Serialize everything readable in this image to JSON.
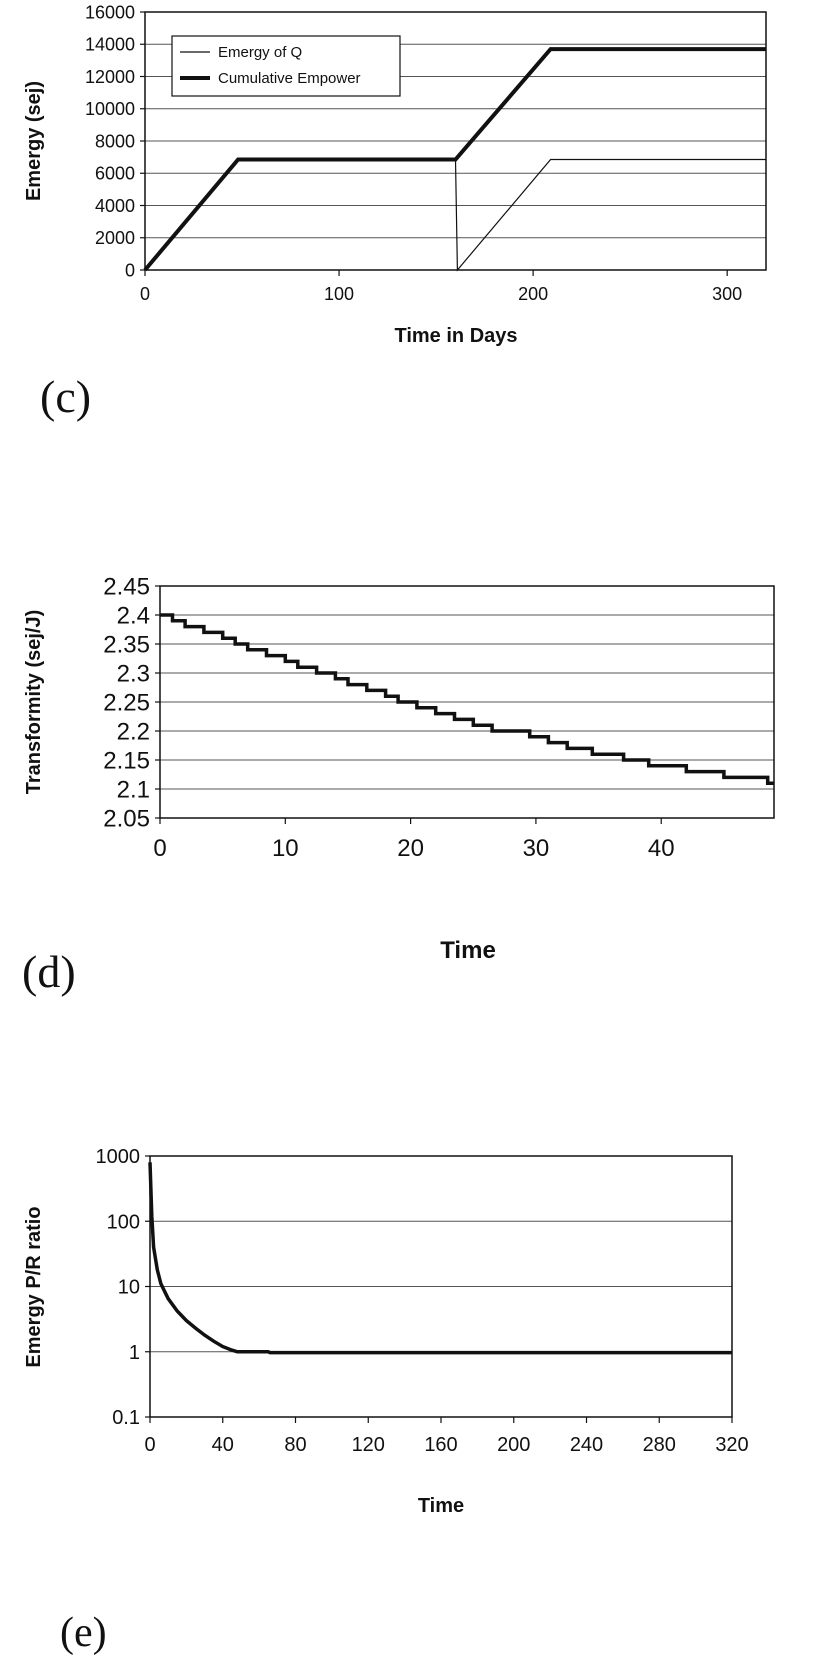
{
  "chart_data": [
    {
      "panel_label": "(c)",
      "type": "line",
      "title": "",
      "xlabel": "Time in Days",
      "ylabel": "Emergy (sej)",
      "xlim": [
        0,
        320
      ],
      "ylim": [
        0,
        16000
      ],
      "x_ticks": [
        0,
        100,
        200,
        300
      ],
      "y_ticks": [
        0,
        2000,
        4000,
        6000,
        8000,
        10000,
        12000,
        14000,
        16000
      ],
      "grid": "horizontal",
      "legend_position": "top-left",
      "series": [
        {
          "name": "Emergy of Q",
          "style": "thin",
          "points": [
            [
              0,
              0
            ],
            [
              48,
              6850
            ],
            [
              160,
              6850
            ],
            [
              161,
              0
            ],
            [
              209,
              6850
            ],
            [
              320,
              6850
            ]
          ]
        },
        {
          "name": "Cumulative Empower",
          "style": "thick",
          "points": [
            [
              0,
              0
            ],
            [
              48,
              6850
            ],
            [
              160,
              6850
            ],
            [
              209,
              13700
            ],
            [
              320,
              13700
            ]
          ]
        }
      ]
    },
    {
      "panel_label": "(d)",
      "type": "line",
      "title": "",
      "xlabel": "Time",
      "ylabel": "Transformity (sej/J)",
      "xlim": [
        0,
        49
      ],
      "ylim": [
        2.05,
        2.45
      ],
      "x_ticks": [
        0,
        10,
        20,
        30,
        40
      ],
      "y_ticks": [
        2.05,
        2.1,
        2.15,
        2.2,
        2.25,
        2.3,
        2.35,
        2.4,
        2.45
      ],
      "grid": "horizontal",
      "series": [
        {
          "style": "thick-step",
          "points": [
            [
              0,
              2.4
            ],
            [
              1,
              2.39
            ],
            [
              2,
              2.38
            ],
            [
              3.5,
              2.37
            ],
            [
              5,
              2.36
            ],
            [
              6,
              2.35
            ],
            [
              7,
              2.34
            ],
            [
              8.5,
              2.33
            ],
            [
              10,
              2.32
            ],
            [
              11,
              2.31
            ],
            [
              12.5,
              2.3
            ],
            [
              14,
              2.29
            ],
            [
              15,
              2.28
            ],
            [
              16.5,
              2.27
            ],
            [
              18,
              2.26
            ],
            [
              19,
              2.25
            ],
            [
              20.5,
              2.24
            ],
            [
              22,
              2.23
            ],
            [
              23.5,
              2.22
            ],
            [
              25,
              2.21
            ],
            [
              26.5,
              2.2
            ],
            [
              28,
              2.2
            ],
            [
              29.5,
              2.19
            ],
            [
              31,
              2.18
            ],
            [
              32.5,
              2.17
            ],
            [
              34.5,
              2.16
            ],
            [
              37,
              2.15
            ],
            [
              39,
              2.14
            ],
            [
              42,
              2.13
            ],
            [
              45,
              2.12
            ],
            [
              48.5,
              2.11
            ],
            [
              49,
              2.11
            ]
          ]
        }
      ]
    },
    {
      "panel_label": "(e)",
      "type": "line",
      "title": "",
      "xlabel": "Time",
      "ylabel": "Emergy P/R ratio",
      "xlim": [
        0,
        320
      ],
      "ylim": [
        0.1,
        1000
      ],
      "y_scale": "log",
      "x_ticks": [
        0,
        40,
        80,
        120,
        160,
        200,
        240,
        280,
        320
      ],
      "y_ticks": [
        0.1,
        1,
        10,
        100,
        1000
      ],
      "y_tick_labels": [
        "0.1",
        "1",
        "10",
        "100",
        "1000"
      ],
      "grid": "horizontal",
      "series": [
        {
          "style": "thick",
          "points": [
            [
              0,
              800
            ],
            [
              1,
              120
            ],
            [
              2,
              40
            ],
            [
              4,
              18
            ],
            [
              6,
              11
            ],
            [
              10,
              6.5
            ],
            [
              15,
              4.2
            ],
            [
              20,
              3
            ],
            [
              25,
              2.3
            ],
            [
              30,
              1.8
            ],
            [
              35,
              1.45
            ],
            [
              40,
              1.2
            ],
            [
              45,
              1.06
            ],
            [
              48,
              1.0
            ],
            [
              65,
              1.0
            ],
            [
              66,
              0.97
            ],
            [
              320,
              0.97
            ]
          ]
        }
      ]
    }
  ]
}
